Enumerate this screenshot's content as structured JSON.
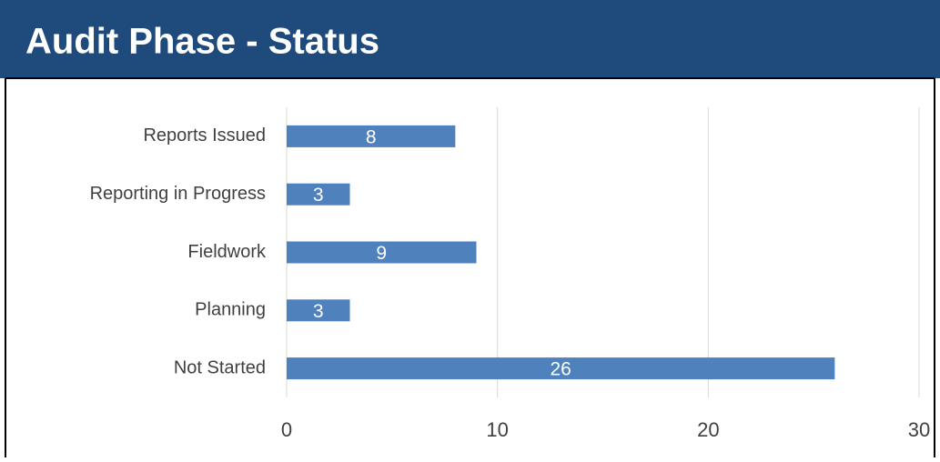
{
  "chart_data": {
    "type": "bar",
    "orientation": "horizontal",
    "title": "Audit Phase - Status",
    "categories": [
      "Reports Issued",
      "Reporting in Progress",
      "Fieldwork",
      "Planning",
      "Not Started"
    ],
    "values": [
      8,
      3,
      9,
      3,
      26
    ],
    "color": "#4f81bd",
    "xlim": [
      0,
      30
    ],
    "xticks": [
      0,
      10,
      20,
      30
    ],
    "grid": true
  }
}
